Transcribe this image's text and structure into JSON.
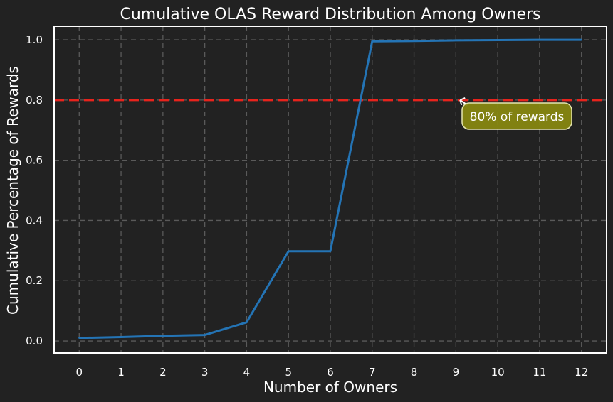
{
  "chart_data": {
    "type": "line",
    "title": "Cumulative OLAS Reward Distribution Among Owners",
    "xlabel": "Number of Owners",
    "ylabel": "Cumulative Percentage of Rewards",
    "x": [
      0,
      1,
      2,
      3,
      4,
      5,
      6,
      7,
      8,
      9,
      10,
      11,
      12
    ],
    "series": [
      {
        "values": [
          0.01,
          0.013,
          0.017,
          0.02,
          0.062,
          0.298,
          0.298,
          0.995,
          0.996,
          0.998,
          0.999,
          1.0,
          1.0
        ]
      }
    ],
    "xlim": [
      -0.6,
      12.6
    ],
    "ylim": [
      -0.04,
      1.045
    ],
    "xticks": [
      0,
      1,
      2,
      3,
      4,
      5,
      6,
      7,
      8,
      9,
      10,
      11,
      12
    ],
    "yticks": [
      0.0,
      0.2,
      0.4,
      0.6,
      0.8,
      1.0
    ],
    "ytick_labels": [
      "0.0",
      "0.2",
      "0.4",
      "0.6",
      "0.8",
      "1.0"
    ],
    "grid": true,
    "reference_line": {
      "y": 0.8,
      "style": "dashed",
      "color": "#e8231c"
    },
    "annotation": {
      "text": "80% of rewards",
      "target_x": 9.1,
      "target_y": 0.8
    },
    "colors": {
      "line": "#2474b5",
      "background": "#222222",
      "annotation_box": "#8a8a10"
    }
  }
}
